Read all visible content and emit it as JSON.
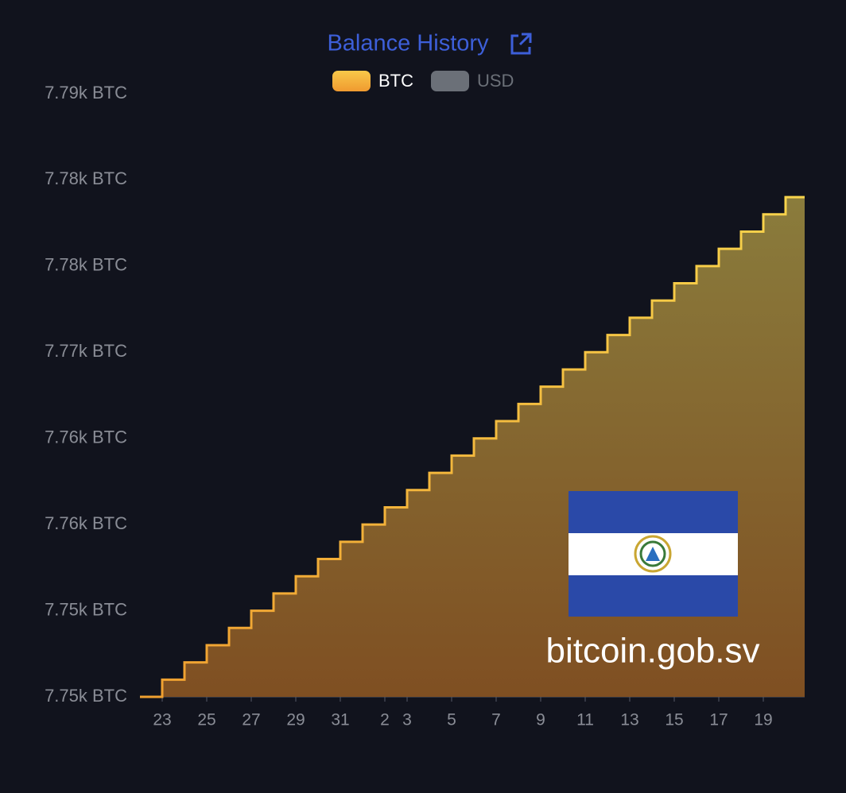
{
  "chart_data": {
    "type": "step-area",
    "title": "Balance History",
    "annotation": "bitcoin.gob.sv",
    "categories": [
      null,
      "23",
      null,
      "25",
      null,
      "27",
      null,
      "29",
      null,
      "31",
      null,
      "2",
      "3",
      null,
      "5",
      null,
      "7",
      null,
      "9",
      null,
      "11",
      null,
      "13",
      null,
      "15",
      null,
      "17",
      null,
      "19",
      null
    ],
    "series": [
      {
        "name": "BTC",
        "color": "#f7b733",
        "values": [
          7750,
          7751,
          7752,
          7753,
          7754,
          7755,
          7756,
          7757,
          7758,
          7759,
          7760,
          7761,
          7762,
          7763,
          7764,
          7765,
          7766,
          7767,
          7768,
          7769,
          7770,
          7771,
          7772,
          7773,
          7774,
          7775,
          7776,
          7777,
          7778,
          7779
        ]
      },
      {
        "name": "USD",
        "color": "#6b7078",
        "hidden": true,
        "values": [
          null,
          null,
          null,
          null,
          null,
          null,
          null,
          null,
          null,
          null,
          null,
          null,
          null,
          null,
          null,
          null,
          null,
          null,
          null,
          null,
          null,
          null,
          null,
          null,
          null,
          null,
          null,
          null,
          null,
          null
        ]
      }
    ],
    "ylim": [
      7750,
      7785
    ],
    "yticks": [
      {
        "value": 7750,
        "label": "7.75k BTC"
      },
      {
        "value": 7755,
        "label": "7.75k BTC"
      },
      {
        "value": 7760,
        "label": "7.76k BTC"
      },
      {
        "value": 7765,
        "label": "7.76k BTC"
      },
      {
        "value": 7770,
        "label": "7.77k BTC"
      },
      {
        "value": 7775,
        "label": "7.78k BTC"
      },
      {
        "value": 7780,
        "label": "7.78k BTC"
      },
      {
        "value": 7785,
        "label": "7.79k BTC"
      }
    ],
    "grid": false
  }
}
